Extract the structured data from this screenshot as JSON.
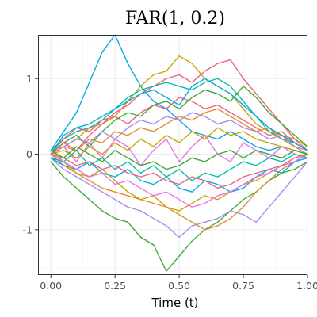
{
  "chart_data": {
    "type": "line",
    "title": "FAR(1, 0.2)",
    "xlabel": "Time (t)",
    "ylabel": "",
    "xlim": [
      -0.05,
      1.0
    ],
    "ylim": [
      -1.6,
      1.58
    ],
    "xticks": [
      0.0,
      0.25,
      0.5,
      0.75,
      1.0
    ],
    "xtick_labels": [
      "0.00",
      "0.25",
      "0.50",
      "0.75",
      "1.00"
    ],
    "yticks": [
      -1,
      0,
      1
    ],
    "ytick_labels": [
      "-1",
      "0",
      "1"
    ],
    "grid": true,
    "legend": "none",
    "palette": [
      "#00a9e0",
      "#c9a300",
      "#f0607c",
      "#3aa832",
      "#a58bea",
      "#e08a2e",
      "#00bfa8",
      "#e86ff0"
    ],
    "series": [
      {
        "color": "#00a9e0",
        "x": [
          0,
          0.05,
          0.1,
          0.15,
          0.2,
          0.25,
          0.3,
          0.35,
          0.4,
          0.45,
          0.5,
          0.55,
          0.6,
          0.65,
          0.7,
          0.75,
          0.8,
          0.85,
          0.9,
          0.95,
          1.0
        ],
        "values": [
          0.05,
          0.3,
          0.55,
          0.95,
          1.35,
          1.58,
          1.2,
          0.9,
          0.7,
          0.6,
          0.45,
          0.3,
          0.25,
          0.2,
          0.3,
          0.2,
          0.1,
          0.05,
          0.1,
          0.05,
          0.0
        ]
      },
      {
        "color": "#c9a300",
        "x": [
          0,
          0.05,
          0.1,
          0.15,
          0.2,
          0.25,
          0.3,
          0.35,
          0.4,
          0.45,
          0.5,
          0.55,
          0.6,
          0.65,
          0.7,
          0.75,
          0.8,
          0.85,
          0.9,
          0.95,
          1.0
        ],
        "values": [
          0.0,
          0.1,
          0.2,
          0.35,
          0.4,
          0.5,
          0.7,
          0.9,
          1.05,
          1.1,
          1.3,
          1.2,
          1.0,
          0.9,
          0.8,
          0.6,
          0.4,
          0.3,
          0.25,
          0.2,
          0.1
        ]
      },
      {
        "color": "#f0607c",
        "x": [
          0,
          0.05,
          0.1,
          0.15,
          0.2,
          0.25,
          0.3,
          0.35,
          0.4,
          0.45,
          0.5,
          0.55,
          0.6,
          0.65,
          0.7,
          0.75,
          0.8,
          0.85,
          0.9,
          0.95,
          1.0
        ],
        "values": [
          0.0,
          0.15,
          0.05,
          0.25,
          0.4,
          0.55,
          0.65,
          0.8,
          0.9,
          1.0,
          1.05,
          0.95,
          1.1,
          1.2,
          1.25,
          1.0,
          0.8,
          0.6,
          0.4,
          0.2,
          0.05
        ]
      },
      {
        "color": "#3aa832",
        "x": [
          0,
          0.05,
          0.1,
          0.15,
          0.2,
          0.25,
          0.3,
          0.35,
          0.4,
          0.45,
          0.5,
          0.55,
          0.6,
          0.65,
          0.7,
          0.75,
          0.8,
          0.85,
          0.9,
          0.95,
          1.0
        ],
        "values": [
          -0.1,
          -0.3,
          -0.45,
          -0.6,
          -0.75,
          -0.85,
          -0.9,
          -1.1,
          -1.2,
          -1.55,
          -1.35,
          -1.15,
          -1.0,
          -0.9,
          -0.75,
          -0.6,
          -0.5,
          -0.35,
          -0.25,
          -0.2,
          -0.1
        ]
      },
      {
        "color": "#a58bea",
        "x": [
          0,
          0.05,
          0.1,
          0.15,
          0.2,
          0.25,
          0.3,
          0.35,
          0.4,
          0.45,
          0.5,
          0.55,
          0.6,
          0.65,
          0.7,
          0.75,
          0.8,
          0.85,
          0.9,
          0.95,
          1.0
        ],
        "values": [
          -0.05,
          -0.2,
          -0.3,
          -0.4,
          -0.5,
          -0.6,
          -0.7,
          -0.75,
          -0.85,
          -0.95,
          -1.1,
          -0.95,
          -0.9,
          -0.85,
          -0.75,
          -0.8,
          -0.9,
          -0.7,
          -0.5,
          -0.3,
          -0.1
        ]
      },
      {
        "color": "#e08a2e",
        "x": [
          0,
          0.05,
          0.1,
          0.15,
          0.2,
          0.25,
          0.3,
          0.35,
          0.4,
          0.45,
          0.5,
          0.55,
          0.6,
          0.65,
          0.7,
          0.75,
          0.8,
          0.85,
          0.9,
          0.95,
          1.0
        ],
        "values": [
          0.0,
          -0.15,
          -0.25,
          -0.35,
          -0.45,
          -0.5,
          -0.55,
          -0.6,
          -0.65,
          -0.7,
          -0.8,
          -0.9,
          -1.0,
          -0.95,
          -0.85,
          -0.7,
          -0.5,
          -0.35,
          -0.2,
          -0.1,
          0.0
        ]
      },
      {
        "color": "#00bfa8",
        "x": [
          0,
          0.05,
          0.1,
          0.15,
          0.2,
          0.25,
          0.3,
          0.35,
          0.4,
          0.45,
          0.5,
          0.55,
          0.6,
          0.65,
          0.7,
          0.75,
          0.8,
          0.85,
          0.9,
          0.95,
          1.0
        ],
        "values": [
          0.05,
          0.2,
          0.3,
          0.35,
          0.45,
          0.6,
          0.75,
          0.85,
          0.9,
          0.95,
          0.9,
          0.85,
          0.95,
          1.0,
          0.9,
          0.7,
          0.5,
          0.3,
          0.2,
          0.15,
          0.05
        ]
      },
      {
        "color": "#e86ff0",
        "x": [
          0,
          0.05,
          0.1,
          0.15,
          0.2,
          0.25,
          0.3,
          0.35,
          0.4,
          0.45,
          0.5,
          0.55,
          0.6,
          0.65,
          0.7,
          0.75,
          0.8,
          0.85,
          0.9,
          0.95,
          1.0
        ],
        "values": [
          0.0,
          0.1,
          -0.1,
          0.15,
          -0.05,
          0.2,
          0.1,
          -0.15,
          0.05,
          0.2,
          -0.1,
          0.1,
          0.25,
          0.0,
          -0.1,
          0.15,
          0.05,
          -0.05,
          0.1,
          0.0,
          -0.05
        ]
      },
      {
        "color": "#00a9e0",
        "x": [
          0,
          0.05,
          0.1,
          0.15,
          0.2,
          0.25,
          0.3,
          0.35,
          0.4,
          0.45,
          0.5,
          0.55,
          0.6,
          0.65,
          0.7,
          0.75,
          0.8,
          0.85,
          0.9,
          0.95,
          1.0
        ],
        "values": [
          -0.05,
          -0.15,
          -0.2,
          -0.1,
          -0.25,
          -0.3,
          -0.2,
          -0.35,
          -0.4,
          -0.3,
          -0.45,
          -0.5,
          -0.35,
          -0.4,
          -0.5,
          -0.45,
          -0.3,
          -0.2,
          -0.25,
          -0.1,
          -0.05
        ]
      },
      {
        "color": "#c9a300",
        "x": [
          0,
          0.05,
          0.1,
          0.15,
          0.2,
          0.25,
          0.3,
          0.35,
          0.4,
          0.45,
          0.5,
          0.55,
          0.6,
          0.65,
          0.7,
          0.75,
          0.8,
          0.85,
          0.9,
          0.95,
          1.0
        ],
        "values": [
          0.05,
          -0.1,
          -0.25,
          -0.3,
          -0.2,
          -0.35,
          -0.5,
          -0.6,
          -0.55,
          -0.7,
          -0.75,
          -0.65,
          -0.55,
          -0.6,
          -0.5,
          -0.4,
          -0.35,
          -0.25,
          -0.15,
          -0.1,
          0.0
        ]
      },
      {
        "color": "#f0607c",
        "x": [
          0,
          0.05,
          0.1,
          0.15,
          0.2,
          0.25,
          0.3,
          0.35,
          0.4,
          0.45,
          0.5,
          0.55,
          0.6,
          0.65,
          0.7,
          0.75,
          0.8,
          0.85,
          0.9,
          0.95,
          1.0
        ],
        "values": [
          0.0,
          0.2,
          0.35,
          0.3,
          0.45,
          0.5,
          0.4,
          0.55,
          0.65,
          0.6,
          0.75,
          0.7,
          0.6,
          0.65,
          0.55,
          0.45,
          0.35,
          0.25,
          0.3,
          0.15,
          0.05
        ]
      },
      {
        "color": "#3aa832",
        "x": [
          0,
          0.05,
          0.1,
          0.15,
          0.2,
          0.25,
          0.3,
          0.35,
          0.4,
          0.45,
          0.5,
          0.55,
          0.6,
          0.65,
          0.7,
          0.75,
          0.8,
          0.85,
          0.9,
          0.95,
          1.0
        ],
        "values": [
          0.0,
          0.15,
          0.25,
          0.1,
          0.3,
          0.45,
          0.55,
          0.5,
          0.65,
          0.7,
          0.6,
          0.75,
          0.85,
          0.8,
          0.7,
          0.9,
          0.75,
          0.55,
          0.4,
          0.25,
          0.1
        ]
      },
      {
        "color": "#a58bea",
        "x": [
          0,
          0.05,
          0.1,
          0.15,
          0.2,
          0.25,
          0.3,
          0.35,
          0.4,
          0.45,
          0.5,
          0.55,
          0.6,
          0.65,
          0.7,
          0.75,
          0.8,
          0.85,
          0.9,
          0.95,
          1.0
        ],
        "values": [
          0.05,
          0.1,
          0.2,
          0.15,
          0.3,
          0.2,
          0.35,
          0.45,
          0.4,
          0.5,
          0.45,
          0.55,
          0.5,
          0.4,
          0.45,
          0.35,
          0.3,
          0.2,
          0.25,
          0.1,
          0.05
        ]
      },
      {
        "color": "#e08a2e",
        "x": [
          0,
          0.05,
          0.1,
          0.15,
          0.2,
          0.25,
          0.3,
          0.35,
          0.4,
          0.45,
          0.5,
          0.55,
          0.6,
          0.65,
          0.7,
          0.75,
          0.8,
          0.85,
          0.9,
          0.95,
          1.0
        ],
        "values": [
          0.0,
          0.1,
          0.05,
          0.2,
          0.15,
          0.3,
          0.25,
          0.35,
          0.3,
          0.4,
          0.5,
          0.45,
          0.55,
          0.6,
          0.5,
          0.4,
          0.3,
          0.35,
          0.2,
          0.1,
          0.0
        ]
      },
      {
        "color": "#00bfa8",
        "x": [
          0,
          0.05,
          0.1,
          0.15,
          0.2,
          0.25,
          0.3,
          0.35,
          0.4,
          0.45,
          0.5,
          0.55,
          0.6,
          0.65,
          0.7,
          0.75,
          0.8,
          0.85,
          0.9,
          0.95,
          1.0
        ],
        "values": [
          -0.05,
          -0.1,
          0.05,
          -0.15,
          -0.05,
          -0.2,
          -0.1,
          -0.25,
          -0.15,
          -0.3,
          -0.2,
          -0.35,
          -0.25,
          -0.3,
          -0.2,
          -0.1,
          -0.15,
          -0.05,
          -0.1,
          0.0,
          -0.05
        ]
      },
      {
        "color": "#e86ff0",
        "x": [
          0,
          0.05,
          0.1,
          0.15,
          0.2,
          0.25,
          0.3,
          0.35,
          0.4,
          0.45,
          0.5,
          0.55,
          0.6,
          0.65,
          0.7,
          0.75,
          0.8,
          0.85,
          0.9,
          0.95,
          1.0
        ],
        "values": [
          0.0,
          -0.1,
          -0.2,
          -0.3,
          -0.25,
          -0.4,
          -0.35,
          -0.45,
          -0.55,
          -0.5,
          -0.6,
          -0.7,
          -0.65,
          -0.55,
          -0.5,
          -0.4,
          -0.3,
          -0.25,
          -0.15,
          -0.1,
          0.0
        ]
      },
      {
        "color": "#00a9e0",
        "x": [
          0,
          0.05,
          0.1,
          0.15,
          0.2,
          0.25,
          0.3,
          0.35,
          0.4,
          0.45,
          0.5,
          0.55,
          0.6,
          0.65,
          0.7,
          0.75,
          0.8,
          0.85,
          0.9,
          0.95,
          1.0
        ],
        "values": [
          0.0,
          0.25,
          0.35,
          0.4,
          0.5,
          0.6,
          0.7,
          0.8,
          0.85,
          0.75,
          0.65,
          0.9,
          1.0,
          0.9,
          0.8,
          0.65,
          0.5,
          0.35,
          0.25,
          0.15,
          0.05
        ]
      },
      {
        "color": "#c9a300",
        "x": [
          0,
          0.05,
          0.1,
          0.15,
          0.2,
          0.25,
          0.3,
          0.35,
          0.4,
          0.45,
          0.5,
          0.55,
          0.6,
          0.65,
          0.7,
          0.75,
          0.8,
          0.85,
          0.9,
          0.95,
          1.0
        ],
        "values": [
          0.0,
          0.05,
          -0.05,
          0.1,
          0.0,
          0.15,
          0.05,
          0.2,
          0.1,
          0.25,
          0.15,
          0.3,
          0.2,
          0.35,
          0.25,
          0.3,
          0.2,
          0.15,
          0.1,
          0.05,
          0.0
        ]
      },
      {
        "color": "#f0607c",
        "x": [
          0,
          0.05,
          0.1,
          0.15,
          0.2,
          0.25,
          0.3,
          0.35,
          0.4,
          0.45,
          0.5,
          0.55,
          0.6,
          0.65,
          0.7,
          0.75,
          0.8,
          0.85,
          0.9,
          0.95,
          1.0
        ],
        "values": [
          0.0,
          -0.05,
          -0.15,
          -0.1,
          -0.2,
          -0.15,
          -0.25,
          -0.3,
          -0.25,
          -0.35,
          -0.4,
          -0.3,
          -0.35,
          -0.45,
          -0.4,
          -0.3,
          -0.25,
          -0.2,
          -0.15,
          -0.05,
          0.0
        ]
      },
      {
        "color": "#3aa832",
        "x": [
          0,
          0.05,
          0.1,
          0.15,
          0.2,
          0.25,
          0.3,
          0.35,
          0.4,
          0.45,
          0.5,
          0.55,
          0.6,
          0.65,
          0.7,
          0.75,
          0.8,
          0.85,
          0.9,
          0.95,
          1.0
        ],
        "values": [
          0.05,
          -0.05,
          0.1,
          0.0,
          -0.1,
          0.05,
          -0.05,
          -0.15,
          -0.1,
          -0.2,
          -0.15,
          -0.05,
          -0.1,
          0.0,
          0.05,
          -0.05,
          0.05,
          0.0,
          -0.05,
          0.05,
          0.0
        ]
      }
    ]
  }
}
